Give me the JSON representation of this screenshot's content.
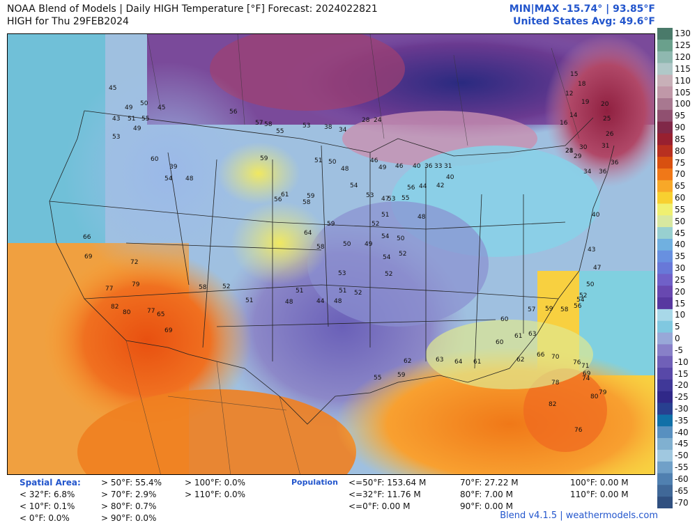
{
  "header": {
    "title": "NOAA Blend of Models | Daily HIGH Temperature [°F] Forecast: 2024022821",
    "subtitle": "HIGH for Thu 29FEB2024",
    "minmax": "MIN|MAX -15.74°  | 93.85°F",
    "avg": "United States Avg: 49.6°F"
  },
  "colorbar": {
    "labels": [
      "130",
      "125",
      "120",
      "115",
      "110",
      "105",
      "100",
      "95",
      "90",
      "85",
      "80",
      "75",
      "70",
      "65",
      "60",
      "55",
      "50",
      "45",
      "40",
      "35",
      "30",
      "25",
      "20",
      "15",
      "10",
      "5",
      "0",
      "-5",
      "-10",
      "-15",
      "-20",
      "-25",
      "-30",
      "-35",
      "-40",
      "-45",
      "-50",
      "-55",
      "-60",
      "-65",
      "-70"
    ],
    "colors": [
      "#4a7a6a",
      "#6aa08c",
      "#8fb8b0",
      "#b0c8c8",
      "#c8b0b8",
      "#c098a8",
      "#a87890",
      "#905070",
      "#802848",
      "#982030",
      "#b83020",
      "#d85010",
      "#f07818",
      "#f8a828",
      "#f8d030",
      "#f0f070",
      "#d8e8a0",
      "#98d0d0",
      "#70b0e0",
      "#6890e0",
      "#6878d8",
      "#7060c8",
      "#6848b0",
      "#5838a0",
      "#a8d8e8",
      "#80c8e0",
      "#98a8d8",
      "#8880c8",
      "#7060b8",
      "#5848a8",
      "#403898",
      "#302888",
      "#284090",
      "#1070a8",
      "#5890c0",
      "#80b0d0",
      "#a0c8e0",
      "#70a0c8",
      "#5080b0",
      "#406898",
      "#305080"
    ]
  },
  "cities": [
    {
      "t": "45"
    },
    {
      "t": "49"
    },
    {
      "t": "50"
    },
    {
      "t": "45"
    },
    {
      "t": "56"
    },
    {
      "t": "43"
    },
    {
      "t": "51"
    },
    {
      "t": "55"
    },
    {
      "t": "49"
    },
    {
      "t": "53"
    },
    {
      "t": "57"
    },
    {
      "t": "58"
    },
    {
      "t": "55"
    },
    {
      "t": "53"
    },
    {
      "t": "38"
    },
    {
      "t": "34"
    },
    {
      "t": "28"
    },
    {
      "t": "24"
    },
    {
      "t": "60"
    },
    {
      "t": "39"
    },
    {
      "t": "54"
    },
    {
      "t": "48"
    },
    {
      "t": "59"
    },
    {
      "t": "51"
    },
    {
      "t": "50"
    },
    {
      "t": "48"
    },
    {
      "t": "46"
    },
    {
      "t": "49"
    },
    {
      "t": "46"
    },
    {
      "t": "40"
    },
    {
      "t": "36"
    },
    {
      "t": "33"
    },
    {
      "t": "31"
    },
    {
      "t": "56"
    },
    {
      "t": "58"
    },
    {
      "t": "61"
    },
    {
      "t": "59"
    },
    {
      "t": "64"
    },
    {
      "t": "58"
    },
    {
      "t": "59"
    },
    {
      "t": "54"
    },
    {
      "t": "53"
    },
    {
      "t": "47"
    },
    {
      "t": "48"
    },
    {
      "t": "44"
    },
    {
      "t": "42"
    },
    {
      "t": "40"
    },
    {
      "t": "66"
    },
    {
      "t": "69"
    },
    {
      "t": "72"
    },
    {
      "t": "77"
    },
    {
      "t": "79"
    },
    {
      "t": "82"
    },
    {
      "t": "80"
    },
    {
      "t": "77"
    },
    {
      "t": "65"
    },
    {
      "t": "69"
    },
    {
      "t": "58"
    },
    {
      "t": "52"
    },
    {
      "t": "51"
    },
    {
      "t": "48"
    },
    {
      "t": "44"
    },
    {
      "t": "48"
    },
    {
      "t": "51"
    },
    {
      "t": "52"
    },
    {
      "t": "53"
    },
    {
      "t": "51"
    },
    {
      "t": "50"
    },
    {
      "t": "49"
    },
    {
      "t": "52"
    },
    {
      "t": "51"
    },
    {
      "t": "53"
    },
    {
      "t": "55"
    },
    {
      "t": "56"
    },
    {
      "t": "54"
    },
    {
      "t": "50"
    },
    {
      "t": "52"
    },
    {
      "t": "54"
    },
    {
      "t": "52"
    },
    {
      "t": "55"
    },
    {
      "t": "59"
    },
    {
      "t": "62"
    },
    {
      "t": "63"
    },
    {
      "t": "64"
    },
    {
      "t": "61"
    },
    {
      "t": "60"
    },
    {
      "t": "62"
    },
    {
      "t": "66"
    },
    {
      "t": "70"
    },
    {
      "t": "76"
    },
    {
      "t": "78"
    },
    {
      "t": "71"
    },
    {
      "t": "69"
    },
    {
      "t": "74"
    },
    {
      "t": "79"
    },
    {
      "t": "80"
    },
    {
      "t": "82"
    },
    {
      "t": "76"
    },
    {
      "t": "60"
    },
    {
      "t": "61"
    },
    {
      "t": "63"
    },
    {
      "t": "57"
    },
    {
      "t": "59"
    },
    {
      "t": "58"
    },
    {
      "t": "56"
    },
    {
      "t": "54"
    },
    {
      "t": "52"
    },
    {
      "t": "50"
    },
    {
      "t": "47"
    },
    {
      "t": "43"
    },
    {
      "t": "40"
    },
    {
      "t": "36"
    },
    {
      "t": "34"
    },
    {
      "t": "29"
    },
    {
      "t": "28"
    },
    {
      "t": "30"
    },
    {
      "t": "21"
    },
    {
      "t": "16"
    },
    {
      "t": "14"
    },
    {
      "t": "15"
    },
    {
      "t": "18"
    },
    {
      "t": "12"
    },
    {
      "t": "19"
    },
    {
      "t": "20"
    },
    {
      "t": "25"
    },
    {
      "t": "26"
    },
    {
      "t": "31"
    },
    {
      "t": "36"
    }
  ],
  "footer": {
    "spatial_title": "Spatial Area:",
    "spatial": [
      "< 32°F: 6.8%",
      "< 10°F: 0.1%",
      "< 0°F: 0.0%",
      "> 50°F: 55.4%",
      "> 70°F: 2.9%",
      "> 80°F: 0.7%",
      "> 90°F: 0.0%",
      "> 100°F: 0.0%",
      "> 110°F: 0.0%"
    ],
    "pop_title": "Population",
    "pop": [
      "<=50°F: 153.64 M",
      "<=32°F: 11.76 M",
      "<=0°F: 0.00 M",
      "70°F: 27.22 M",
      "80°F: 7.00 M",
      "90°F: 0.00 M",
      "100°F: 0.00 M",
      "110°F: 0.00 M"
    ],
    "credit": "Blend v4.1.5 | weathermodels.com"
  }
}
